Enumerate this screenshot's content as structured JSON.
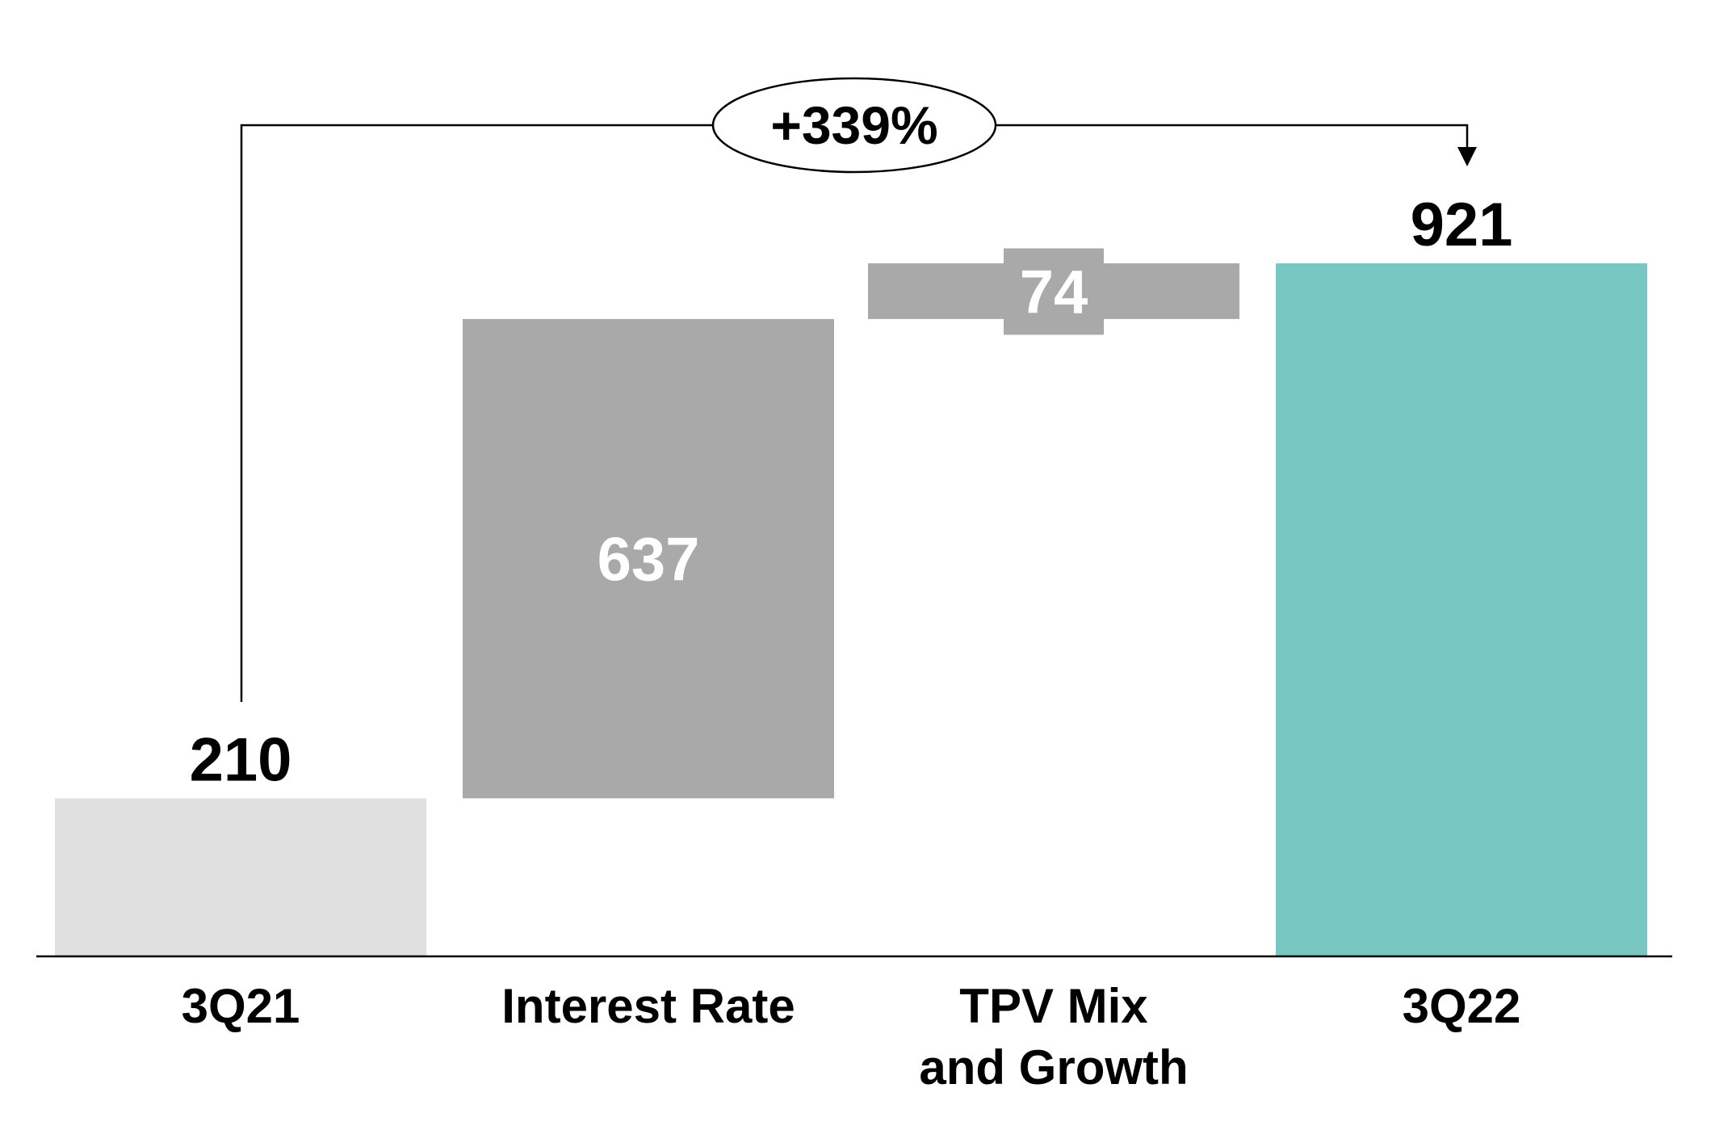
{
  "chart_data": {
    "type": "waterfall",
    "title": "",
    "xlabel": "",
    "ylabel": "",
    "ylim": [
      0,
      921
    ],
    "grid": false,
    "categories": [
      {
        "label": [
          "3Q21"
        ],
        "start": 0,
        "end": 210,
        "value_label": "210",
        "kind": "total",
        "color": "#e0e0e0"
      },
      {
        "label": [
          "Interest Rate"
        ],
        "start": 210,
        "end": 847,
        "value_label": "637",
        "kind": "delta",
        "color": "#a9a9a9"
      },
      {
        "label": [
          "TPV Mix",
          "and Growth"
        ],
        "start": 847,
        "end": 921,
        "value_label": "74",
        "kind": "delta",
        "color": "#a9a9a9"
      },
      {
        "label": [
          "3Q22"
        ],
        "start": 0,
        "end": 921,
        "value_label": "921",
        "kind": "total",
        "color": "#78c7c2"
      }
    ],
    "annotation": {
      "text": "+339%",
      "from": "3Q21",
      "to": "3Q22"
    }
  }
}
